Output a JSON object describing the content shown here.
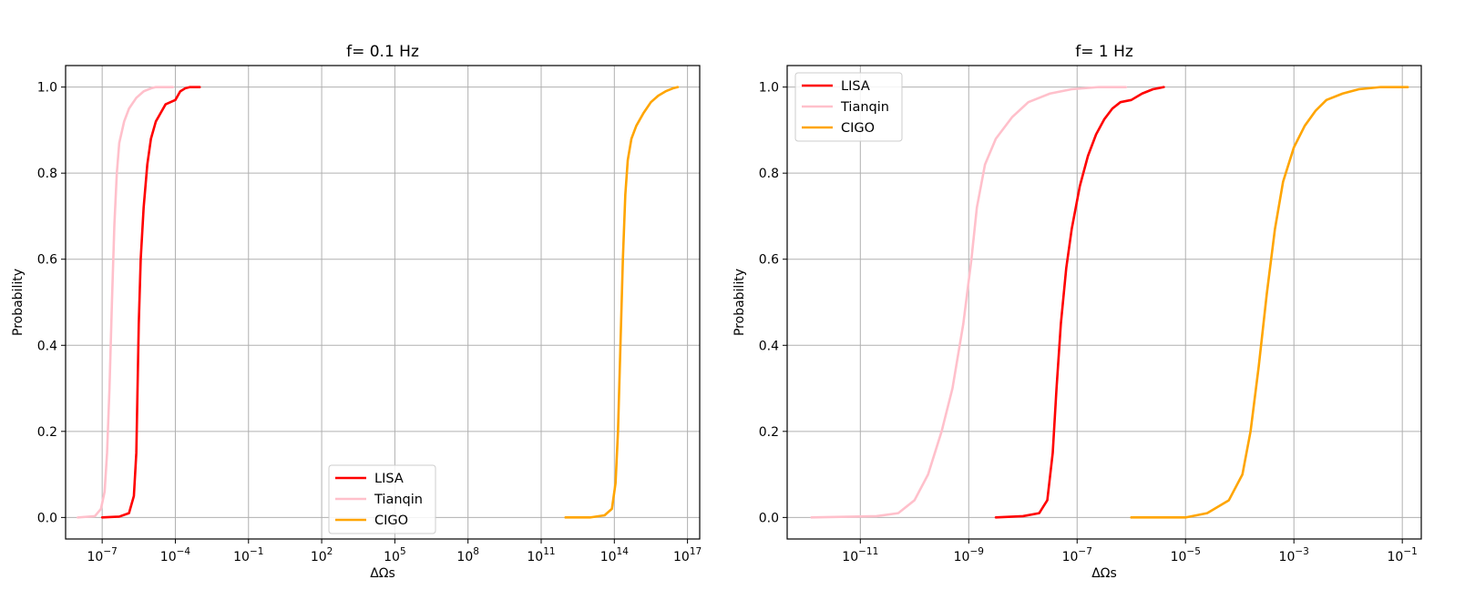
{
  "chart_data": [
    {
      "type": "line",
      "title": "f= 0.1 Hz",
      "xlabel": "ΔΩs",
      "ylabel": "Probability",
      "xscale": "log",
      "xlim_log10": [
        -8.5,
        17.5
      ],
      "ylim": [
        -0.05,
        1.05
      ],
      "x_ticks": [
        {
          "exp": -7,
          "label": "10",
          "sup": "−7"
        },
        {
          "exp": -4,
          "label": "10",
          "sup": "−4"
        },
        {
          "exp": -1,
          "label": "10",
          "sup": "−1"
        },
        {
          "exp": 2,
          "label": "10",
          "sup": "2"
        },
        {
          "exp": 5,
          "label": "10",
          "sup": "5"
        },
        {
          "exp": 8,
          "label": "10",
          "sup": "8"
        },
        {
          "exp": 11,
          "label": "10",
          "sup": "11"
        },
        {
          "exp": 14,
          "label": "10",
          "sup": "14"
        },
        {
          "exp": 17,
          "label": "10",
          "sup": "17"
        }
      ],
      "y_ticks": [
        {
          "value": 0.0,
          "label": "0.0"
        },
        {
          "value": 0.2,
          "label": "0.2"
        },
        {
          "value": 0.4,
          "label": "0.4"
        },
        {
          "value": 0.6,
          "label": "0.6"
        },
        {
          "value": 0.8,
          "label": "0.8"
        },
        {
          "value": 1.0,
          "label": "1.0"
        }
      ],
      "grid": true,
      "legend_position": "lower-center",
      "series": [
        {
          "name": "LISA",
          "color": "#ff0000",
          "log10_x": [
            -7.0,
            -6.3,
            -5.9,
            -5.7,
            -5.6,
            -5.55,
            -5.5,
            -5.42,
            -5.3,
            -5.15,
            -5.0,
            -4.8,
            -4.6,
            -4.4,
            -4.2,
            -4.0,
            -3.8,
            -3.6,
            -3.4,
            -3.0
          ],
          "y": [
            0.0,
            0.002,
            0.01,
            0.05,
            0.15,
            0.3,
            0.45,
            0.6,
            0.72,
            0.82,
            0.88,
            0.92,
            0.94,
            0.96,
            0.965,
            0.97,
            0.99,
            0.997,
            1.0,
            1.0
          ]
        },
        {
          "name": "Tianqin",
          "color": "#ffc0cb",
          "log10_x": [
            -8.0,
            -7.3,
            -7.05,
            -6.9,
            -6.8,
            -6.7,
            -6.6,
            -6.5,
            -6.4,
            -6.3,
            -6.1,
            -5.9,
            -5.6,
            -5.3,
            -5.0,
            -4.8,
            -4.1
          ],
          "y": [
            0.0,
            0.003,
            0.02,
            0.06,
            0.15,
            0.3,
            0.5,
            0.68,
            0.8,
            0.87,
            0.92,
            0.95,
            0.975,
            0.99,
            0.997,
            1.0,
            1.0
          ]
        },
        {
          "name": "CIGO",
          "color": "#ffa500",
          "log10_x": [
            12.0,
            13.0,
            13.6,
            13.9,
            14.05,
            14.15,
            14.25,
            14.35,
            14.45,
            14.55,
            14.7,
            14.9,
            15.2,
            15.5,
            15.8,
            16.1,
            16.4,
            16.6
          ],
          "y": [
            0.0,
            0.0,
            0.005,
            0.02,
            0.08,
            0.2,
            0.4,
            0.6,
            0.75,
            0.83,
            0.88,
            0.91,
            0.94,
            0.965,
            0.98,
            0.99,
            0.997,
            1.0
          ]
        }
      ]
    },
    {
      "type": "line",
      "title": "f= 1 Hz",
      "xlabel": "ΔΩs",
      "ylabel": "Probability",
      "xscale": "log",
      "xlim_log10": [
        -12.35,
        -0.65
      ],
      "ylim": [
        -0.05,
        1.05
      ],
      "x_ticks": [
        {
          "exp": -11,
          "label": "10",
          "sup": "−11"
        },
        {
          "exp": -9,
          "label": "10",
          "sup": "−9"
        },
        {
          "exp": -7,
          "label": "10",
          "sup": "−7"
        },
        {
          "exp": -5,
          "label": "10",
          "sup": "−5"
        },
        {
          "exp": -3,
          "label": "10",
          "sup": "−3"
        },
        {
          "exp": -1,
          "label": "10",
          "sup": "−1"
        }
      ],
      "y_ticks": [
        {
          "value": 0.0,
          "label": "0.0"
        },
        {
          "value": 0.2,
          "label": "0.2"
        },
        {
          "value": 0.4,
          "label": "0.4"
        },
        {
          "value": 0.6,
          "label": "0.6"
        },
        {
          "value": 0.8,
          "label": "0.8"
        },
        {
          "value": 1.0,
          "label": "1.0"
        }
      ],
      "grid": true,
      "legend_position": "upper-left",
      "series": [
        {
          "name": "LISA",
          "color": "#ff0000",
          "log10_x": [
            -8.5,
            -8.0,
            -7.7,
            -7.55,
            -7.45,
            -7.38,
            -7.3,
            -7.2,
            -7.1,
            -6.95,
            -6.8,
            -6.65,
            -6.5,
            -6.35,
            -6.2,
            -6.0,
            -5.8,
            -5.6,
            -5.4
          ],
          "y": [
            0.0,
            0.003,
            0.01,
            0.04,
            0.15,
            0.3,
            0.45,
            0.58,
            0.67,
            0.77,
            0.84,
            0.89,
            0.925,
            0.95,
            0.965,
            0.97,
            0.985,
            0.995,
            1.0
          ]
        },
        {
          "name": "Tianqin",
          "color": "#ffc0cb",
          "log10_x": [
            -11.9,
            -10.7,
            -10.3,
            -10.0,
            -9.75,
            -9.5,
            -9.3,
            -9.1,
            -8.95,
            -8.85,
            -8.7,
            -8.5,
            -8.2,
            -7.9,
            -7.5,
            -7.1,
            -6.6,
            -6.1
          ],
          "y": [
            0.0,
            0.003,
            0.01,
            0.04,
            0.1,
            0.2,
            0.3,
            0.45,
            0.6,
            0.72,
            0.82,
            0.88,
            0.93,
            0.965,
            0.985,
            0.995,
            1.0,
            1.0
          ]
        },
        {
          "name": "CIGO",
          "color": "#ffa500",
          "log10_x": [
            -6.0,
            -5.0,
            -4.6,
            -4.2,
            -3.95,
            -3.8,
            -3.65,
            -3.5,
            -3.35,
            -3.2,
            -3.0,
            -2.8,
            -2.6,
            -2.4,
            -2.1,
            -1.8,
            -1.4,
            -0.9
          ],
          "y": [
            0.0,
            0.0,
            0.01,
            0.04,
            0.1,
            0.2,
            0.35,
            0.52,
            0.67,
            0.78,
            0.86,
            0.91,
            0.945,
            0.97,
            0.985,
            0.995,
            1.0,
            1.0
          ]
        }
      ]
    }
  ]
}
